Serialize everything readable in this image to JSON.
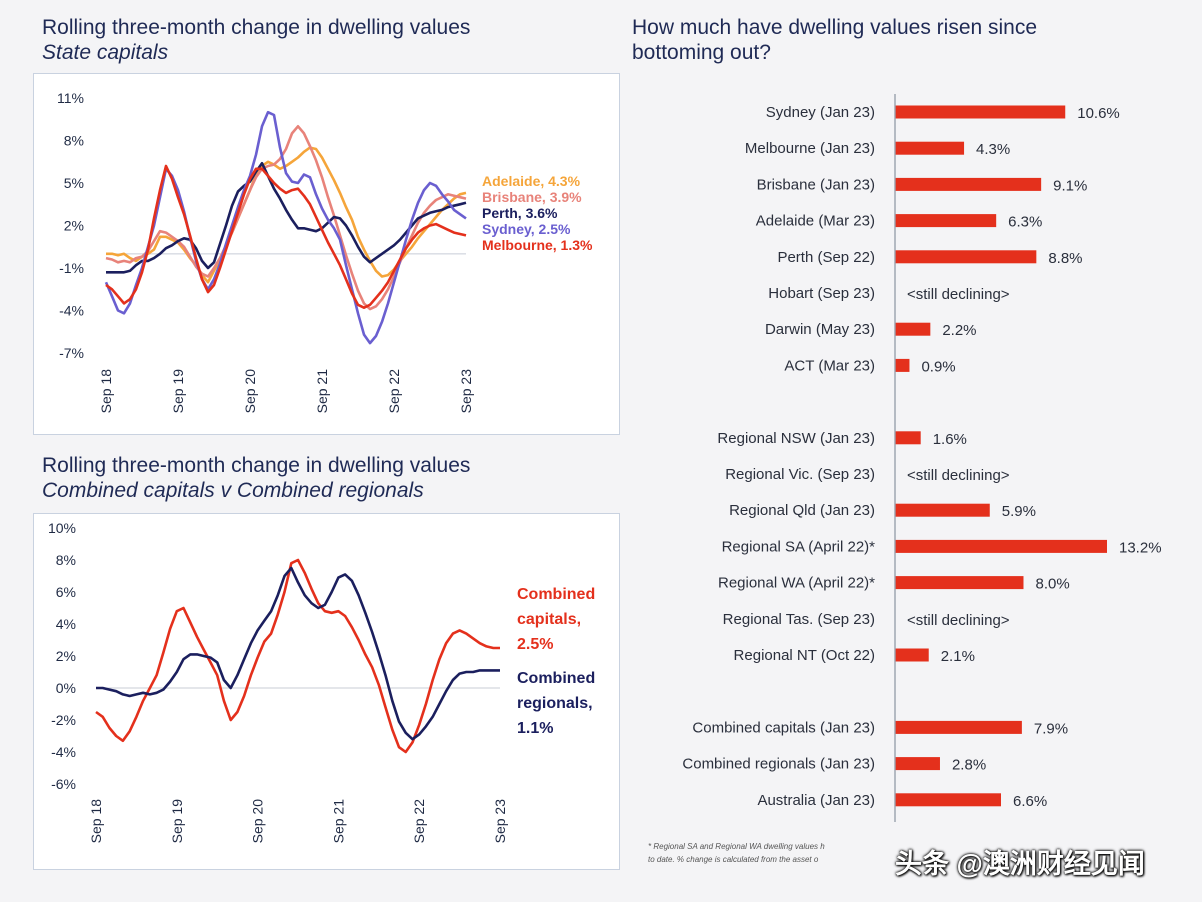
{
  "left_top": {
    "title": "Rolling three-month change in dwelling values",
    "subtitle": "State capitals"
  },
  "left_bottom": {
    "title": "Rolling three-month change in dwelling values",
    "subtitle": "Combined capitals v Combined regionals"
  },
  "right": {
    "title_line1": "How much have dwelling values risen since",
    "title_line2": "bottoming out?"
  },
  "footnote_line1": "* Regional SA and Regional WA dwelling values h",
  "footnote_line2": "to date. % change is calculated from the asset o",
  "watermark": "头条 @澳洲财经见闻",
  "chart_data": [
    {
      "type": "line",
      "title": "Rolling three-month change in dwelling values — State capitals",
      "ylim": [
        -7,
        11
      ],
      "yticks": [
        "11%",
        "8%",
        "5%",
        "2%",
        "-1%",
        "-4%",
        "-7%"
      ],
      "ytick_values": [
        11,
        8,
        5,
        2,
        -1,
        -4,
        -7
      ],
      "xticks": [
        "Sep 18",
        "Sep 19",
        "Sep 20",
        "Sep 21",
        "Sep 22",
        "Sep 23"
      ],
      "x_range": [
        0,
        60
      ],
      "series": [
        {
          "name": "Adelaide, 4.3%",
          "color": "#f5a53a",
          "values": [
            0,
            0,
            -0.1,
            0,
            -0.3,
            -0.5,
            -0.2,
            0,
            0.3,
            1.2,
            1.2,
            1,
            0.8,
            0.3,
            -0.3,
            -0.8,
            -1.5,
            -2,
            -1.2,
            -0.4,
            0.6,
            1.5,
            2.5,
            3.5,
            4.5,
            5.6,
            6.2,
            6.5,
            6.3,
            6,
            6.2,
            6.5,
            6.8,
            7.2,
            7.5,
            7.4,
            6.8,
            6,
            5.2,
            4.3,
            3.3,
            2.4,
            1.2,
            0.3,
            -0.5,
            -1.2,
            -1.6,
            -1.5,
            -1.1,
            -0.5,
            0,
            0.5,
            1.1,
            1.6,
            2.1,
            2.6,
            3.1,
            3.5,
            3.9,
            4.2,
            4.3
          ]
        },
        {
          "name": "Brisbane, 3.9%",
          "color": "#e8837a",
          "values": [
            -0.3,
            -0.4,
            -0.6,
            -0.5,
            -0.6,
            -0.3,
            -0.2,
            0.2,
            0.9,
            1.6,
            1.5,
            1.2,
            0.9,
            0.5,
            -0.2,
            -0.9,
            -1.4,
            -1.6,
            -1,
            -0.3,
            0.6,
            1.5,
            2.5,
            3.5,
            4.5,
            5.4,
            6,
            6.2,
            6.3,
            6.7,
            7.4,
            8.5,
            9,
            8.5,
            7.6,
            6.6,
            5.4,
            4,
            2.7,
            1.3,
            -0.1,
            -1.4,
            -2.6,
            -3.5,
            -3.9,
            -3.7,
            -3.2,
            -2.5,
            -1.6,
            -0.6,
            0.4,
            1.3,
            2.2,
            2.9,
            3.4,
            3.8,
            4,
            4.2,
            4.1,
            4,
            3.9
          ]
        },
        {
          "name": "Perth, 3.6%",
          "color": "#1b1f5e",
          "values": [
            -1.3,
            -1.3,
            -1.3,
            -1.3,
            -1.2,
            -0.8,
            -0.5,
            -0.5,
            -0.3,
            0,
            0.4,
            0.6,
            0.9,
            1.1,
            1,
            0.4,
            -0.5,
            -1,
            -0.6,
            0.7,
            2,
            3.4,
            4.4,
            4.8,
            5.1,
            5.8,
            6.4,
            5.5,
            4.6,
            3.9,
            3.1,
            2.4,
            1.8,
            1.8,
            1.7,
            1.6,
            1.8,
            2.2,
            2.6,
            2.5,
            2,
            1.3,
            0.5,
            -0.2,
            -0.6,
            -0.3,
            0,
            0.3,
            0.6,
            1,
            1.5,
            2,
            2.5,
            2.7,
            2.9,
            3,
            3.1,
            3.3,
            3.4,
            3.5,
            3.6
          ]
        },
        {
          "name": "Sydney, 2.5%",
          "color": "#6a5fd0",
          "values": [
            -2,
            -3,
            -4,
            -4.2,
            -3.5,
            -2.2,
            -1,
            0.5,
            2,
            4,
            6,
            5.5,
            4.5,
            3,
            1.2,
            -0.5,
            -1.8,
            -2.5,
            -1.8,
            -0.7,
            0.7,
            2,
            3.3,
            4.5,
            5.5,
            7,
            9,
            10,
            9.8,
            7.5,
            5.7,
            5.1,
            5,
            5.6,
            5.4,
            4.2,
            3.2,
            2.4,
            1.8,
            1,
            -0.8,
            -2.5,
            -4.2,
            -5.7,
            -6.3,
            -5.8,
            -4.8,
            -3.5,
            -2,
            -0.5,
            1,
            2.4,
            3.6,
            4.5,
            5,
            4.8,
            4.2,
            3.7,
            3.1,
            2.8,
            2.5
          ]
        },
        {
          "name": "Melbourne, 1.3%",
          "color": "#e4301c",
          "values": [
            -2.2,
            -2.5,
            -3,
            -3.5,
            -3.2,
            -2.5,
            -1.3,
            0.3,
            2.5,
            4.5,
            6.2,
            5.3,
            4,
            2.8,
            1.3,
            -0.3,
            -1.8,
            -2.7,
            -2.2,
            -1,
            0.3,
            1.6,
            2.9,
            4.2,
            5.3,
            6,
            6,
            5.5,
            5,
            4.6,
            4.3,
            4.5,
            4.6,
            4.1,
            3.5,
            2.6,
            1.7,
            0.8,
            0,
            -0.8,
            -1.8,
            -2.8,
            -3.6,
            -3.8,
            -3.6,
            -3.1,
            -2.6,
            -2,
            -1.2,
            -0.4,
            0.4,
            1,
            1.5,
            1.8,
            2,
            2.1,
            1.9,
            1.7,
            1.5,
            1.4,
            1.3
          ]
        }
      ]
    },
    {
      "type": "line",
      "title": "Rolling three-month change in dwelling values — Combined capitals v Combined regionals",
      "ylim": [
        -6,
        10
      ],
      "yticks": [
        "10%",
        "8%",
        "6%",
        "4%",
        "2%",
        "0%",
        "-2%",
        "-4%",
        "-6%"
      ],
      "ytick_values": [
        10,
        8,
        6,
        4,
        2,
        0,
        -2,
        -4,
        -6
      ],
      "xticks": [
        "Sep 18",
        "Sep 19",
        "Sep 20",
        "Sep 21",
        "Sep 22",
        "Sep 23"
      ],
      "x_range": [
        0,
        60
      ],
      "series": [
        {
          "name": "Combined capitals, 2.5%",
          "legend_lines": [
            "Combined",
            "capitals,",
            "2.5%"
          ],
          "color": "#e4301c",
          "values": [
            -1.5,
            -1.8,
            -2.5,
            -3,
            -3.3,
            -2.7,
            -1.8,
            -0.8,
            0,
            0.8,
            2.2,
            3.7,
            4.8,
            5,
            4.1,
            3.2,
            2.4,
            1.6,
            0.8,
            -0.8,
            -2,
            -1.5,
            -0.5,
            0.8,
            1.9,
            2.9,
            3.4,
            4.6,
            6,
            7.8,
            8,
            7.2,
            6.2,
            5.3,
            4.8,
            4.7,
            4.8,
            4.5,
            3.8,
            3,
            2.1,
            1.3,
            0.2,
            -1.2,
            -2.6,
            -3.7,
            -4,
            -3.4,
            -2.3,
            -1,
            0.5,
            1.8,
            2.8,
            3.4,
            3.6,
            3.4,
            3.1,
            2.8,
            2.6,
            2.5,
            2.5
          ]
        },
        {
          "name": "Combined regionals, 1.1%",
          "legend_lines": [
            "Combined",
            "regionals,",
            "1.1%"
          ],
          "color": "#1b1f5e",
          "values": [
            0,
            0,
            -0.1,
            -0.2,
            -0.4,
            -0.5,
            -0.4,
            -0.3,
            -0.4,
            -0.3,
            -0.1,
            0.4,
            1,
            1.8,
            2.1,
            2.1,
            2,
            1.9,
            1.6,
            0.5,
            0,
            0.8,
            1.8,
            2.8,
            3.6,
            4.2,
            4.8,
            5.8,
            7,
            7.5,
            6.6,
            5.8,
            5.3,
            5,
            5.2,
            6,
            6.9,
            7.1,
            6.7,
            5.8,
            4.7,
            3.5,
            2.2,
            0.8,
            -0.8,
            -2.1,
            -2.8,
            -3.2,
            -2.9,
            -2.4,
            -1.8,
            -1,
            -0.2,
            0.5,
            0.9,
            1,
            1,
            1.1,
            1.1,
            1.1,
            1.1
          ]
        }
      ]
    },
    {
      "type": "bar",
      "orientation": "horizontal",
      "title": "How much have dwelling values risen since bottoming out?",
      "groups": [
        {
          "categories": [
            "Sydney (Jan 23)",
            "Melbourne (Jan 23)",
            "Brisbane (Jan 23)",
            "Adelaide (Mar 23)",
            "Perth (Sep 22)",
            "Hobart (Sep 23)",
            "Darwin (May 23)",
            "ACT (Mar 23)"
          ],
          "values": [
            10.6,
            4.3,
            9.1,
            6.3,
            8.8,
            null,
            2.2,
            0.9
          ],
          "labels": [
            "10.6%",
            "4.3%",
            "9.1%",
            "6.3%",
            "8.8%",
            "<still declining>",
            "2.2%",
            "0.9%"
          ]
        },
        {
          "categories": [
            "Regional NSW (Jan 23)",
            "Regional Vic. (Sep 23)",
            "Regional Qld (Jan 23)",
            "Regional SA (April 22)*",
            "Regional WA (April 22)*",
            "Regional Tas. (Sep 23)",
            "Regional NT (Oct 22)"
          ],
          "values": [
            1.6,
            null,
            5.9,
            13.2,
            8.0,
            null,
            2.1
          ],
          "labels": [
            "1.6%",
            "<still declining>",
            "5.9%",
            "13.2%",
            "8.0%",
            "<still declining>",
            "2.1%"
          ]
        },
        {
          "categories": [
            "Combined capitals (Jan 23)",
            "Combined regionals (Jan 23)",
            "Australia (Jan 23)"
          ],
          "values": [
            7.9,
            2.8,
            6.6
          ],
          "labels": [
            "7.9%",
            "2.8%",
            "6.6%"
          ]
        }
      ],
      "bar_color": "#e4301c",
      "xlim": [
        0,
        13.2
      ]
    }
  ]
}
